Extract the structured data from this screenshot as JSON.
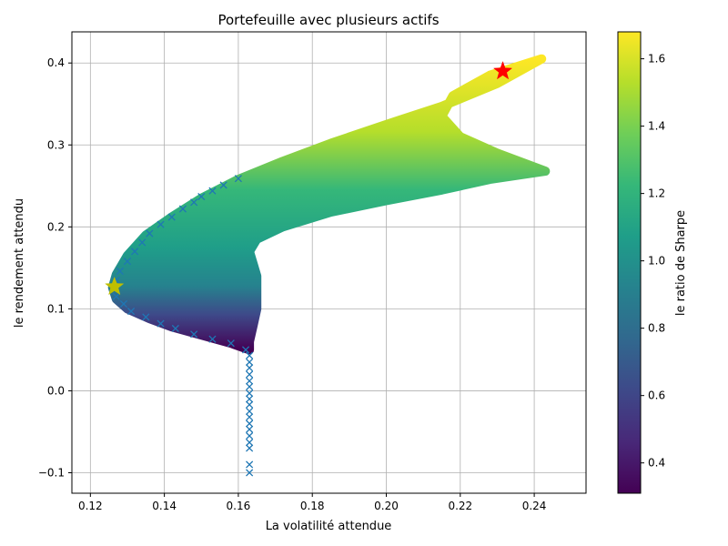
{
  "chart_data": {
    "type": "scatter",
    "title": "Portefeuille avec plusieurs actifs",
    "xlabel": "La volatilité attendue",
    "ylabel": "le rendement attendu",
    "xlim": [
      0.115,
      0.254
    ],
    "ylim": [
      -0.125,
      0.438
    ],
    "xticks": [
      0.12,
      0.14,
      0.16,
      0.18,
      0.2,
      0.22,
      0.24
    ],
    "xtick_labels": [
      "0.12",
      "0.14",
      "0.16",
      "0.18",
      "0.20",
      "0.22",
      "0.24"
    ],
    "yticks": [
      -0.1,
      0.0,
      0.1,
      0.2,
      0.3,
      0.4
    ],
    "ytick_labels": [
      "−0.1",
      "0.0",
      "0.1",
      "0.2",
      "0.3",
      "0.4"
    ],
    "grid": true,
    "colorbar": {
      "label": "le ratio de Sharpe",
      "range": [
        0.31,
        1.68
      ],
      "ticks": [
        0.4,
        0.6,
        0.8,
        1.0,
        1.2,
        1.4,
        1.6
      ],
      "tick_labels": [
        "0.4",
        "0.6",
        "0.8",
        "1.0",
        "1.2",
        "1.4",
        "1.6"
      ],
      "colormap": [
        "#440154",
        "#482878",
        "#3e4989",
        "#31688e",
        "#26828e",
        "#1f9e89",
        "#35b779",
        "#6ece58",
        "#b5de2b",
        "#fde725"
      ]
    },
    "cloud_boundary": {
      "outer": [
        [
          0.163,
          0.05
        ],
        [
          0.158,
          0.058
        ],
        [
          0.15,
          0.068
        ],
        [
          0.142,
          0.078
        ],
        [
          0.136,
          0.088
        ],
        [
          0.13,
          0.1
        ],
        [
          0.127,
          0.112
        ],
        [
          0.126,
          0.126
        ],
        [
          0.127,
          0.142
        ],
        [
          0.13,
          0.165
        ],
        [
          0.135,
          0.19
        ],
        [
          0.142,
          0.212
        ],
        [
          0.15,
          0.235
        ],
        [
          0.16,
          0.258
        ],
        [
          0.172,
          0.28
        ],
        [
          0.185,
          0.302
        ],
        [
          0.2,
          0.325
        ],
        [
          0.215,
          0.347
        ],
        [
          0.23,
          0.375
        ],
        [
          0.242,
          0.405
        ]
      ],
      "notch": [
        [
          0.242,
          0.405
        ],
        [
          0.228,
          0.385
        ],
        [
          0.218,
          0.36
        ],
        [
          0.215,
          0.335
        ],
        [
          0.22,
          0.31
        ],
        [
          0.23,
          0.29
        ],
        [
          0.243,
          0.268
        ]
      ],
      "inner": [
        [
          0.243,
          0.268
        ],
        [
          0.228,
          0.258
        ],
        [
          0.215,
          0.245
        ],
        [
          0.2,
          0.232
        ],
        [
          0.185,
          0.218
        ],
        [
          0.172,
          0.2
        ],
        [
          0.165,
          0.185
        ],
        [
          0.163,
          0.17
        ],
        [
          0.164,
          0.155
        ],
        [
          0.165,
          0.14
        ],
        [
          0.165,
          0.12
        ],
        [
          0.165,
          0.1
        ],
        [
          0.164,
          0.08
        ],
        [
          0.163,
          0.06
        ],
        [
          0.163,
          0.05
        ]
      ]
    },
    "frontier": [
      [
        0.163,
        -0.1
      ],
      [
        0.163,
        -0.09
      ],
      [
        0.163,
        -0.07
      ],
      [
        0.163,
        -0.063
      ],
      [
        0.163,
        -0.055
      ],
      [
        0.163,
        -0.047
      ],
      [
        0.163,
        -0.04
      ],
      [
        0.163,
        -0.032
      ],
      [
        0.163,
        -0.025
      ],
      [
        0.163,
        -0.017
      ],
      [
        0.163,
        -0.01
      ],
      [
        0.163,
        -0.003
      ],
      [
        0.163,
        0.005
      ],
      [
        0.163,
        0.012
      ],
      [
        0.163,
        0.02
      ],
      [
        0.163,
        0.028
      ],
      [
        0.163,
        0.035
      ],
      [
        0.163,
        0.043
      ],
      [
        0.162,
        0.05
      ],
      [
        0.158,
        0.058
      ],
      [
        0.153,
        0.063
      ],
      [
        0.148,
        0.069
      ],
      [
        0.143,
        0.076
      ],
      [
        0.139,
        0.082
      ],
      [
        0.135,
        0.09
      ],
      [
        0.131,
        0.097
      ],
      [
        0.129,
        0.106
      ],
      [
        0.127,
        0.115
      ],
      [
        0.126,
        0.125
      ],
      [
        0.127,
        0.135
      ],
      [
        0.128,
        0.146
      ],
      [
        0.13,
        0.158
      ],
      [
        0.132,
        0.17
      ],
      [
        0.134,
        0.181
      ],
      [
        0.136,
        0.192
      ],
      [
        0.139,
        0.203
      ],
      [
        0.142,
        0.212
      ],
      [
        0.145,
        0.222
      ],
      [
        0.148,
        0.23
      ],
      [
        0.15,
        0.237
      ],
      [
        0.153,
        0.244
      ],
      [
        0.156,
        0.251
      ],
      [
        0.16,
        0.259
      ]
    ],
    "markers": [
      {
        "shape": "star",
        "color": "#ff0000",
        "x": 0.2315,
        "y": 0.39
      },
      {
        "shape": "star",
        "color": "#bfbf00",
        "x": 0.1265,
        "y": 0.127
      }
    ],
    "frontier_color": "#1f77b4"
  }
}
